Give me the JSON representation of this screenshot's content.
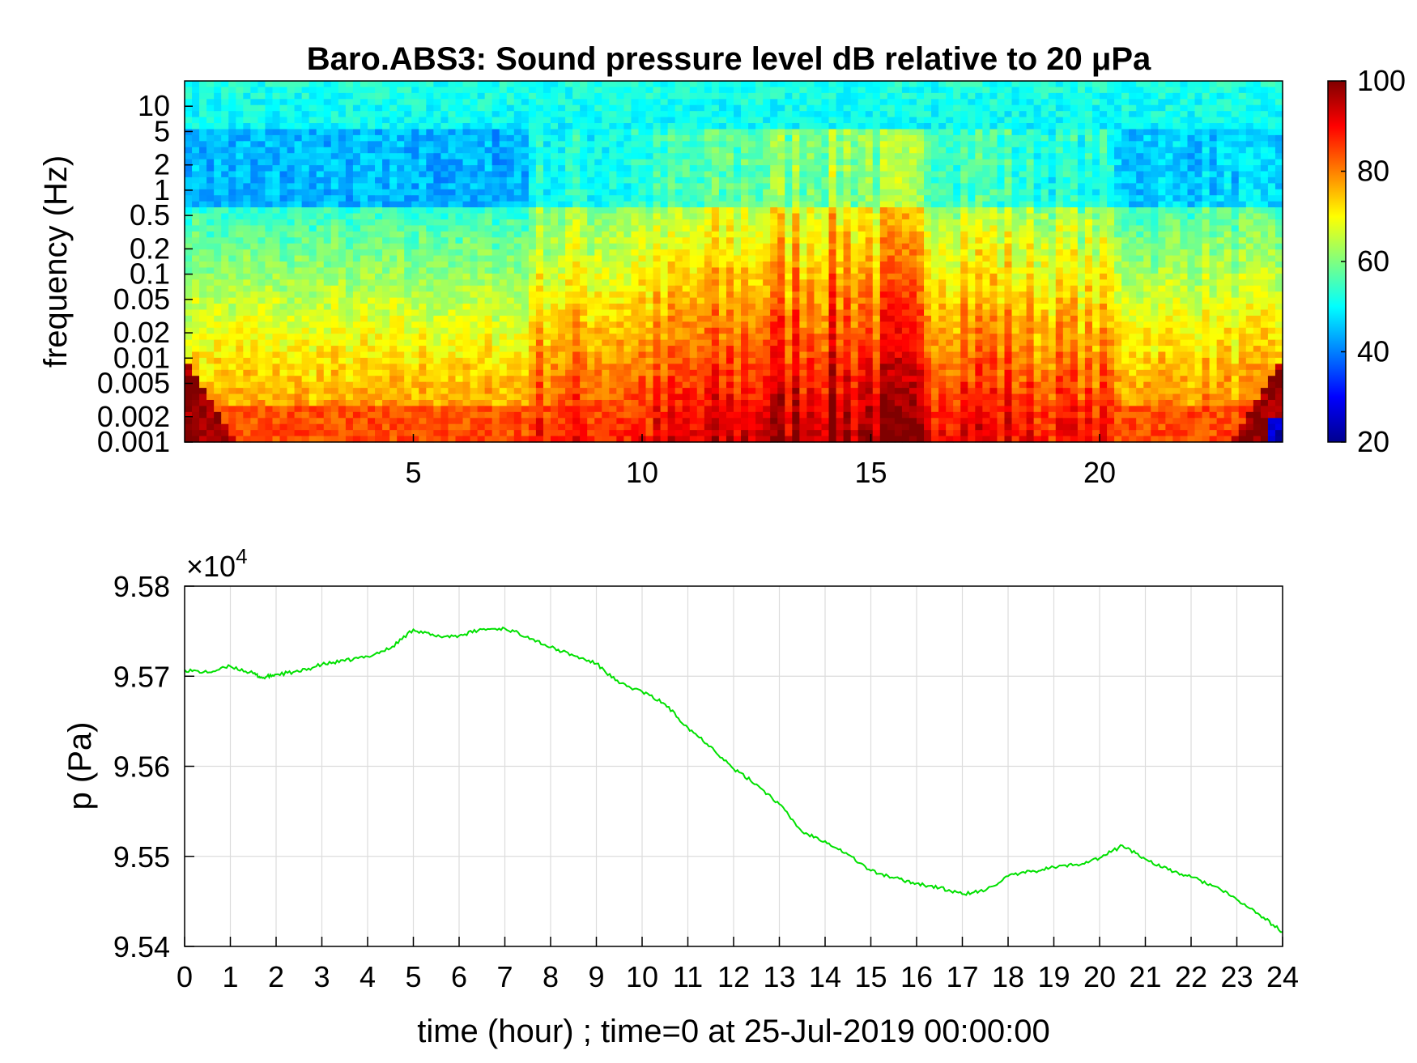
{
  "chart_data": [
    {
      "type": "heatmap",
      "title": "Baro.ABS3: Sound pressure level dB relative to 20 μPa",
      "ylabel": "frequency (Hz)",
      "xlabel": "",
      "yscale": "log",
      "ylim": [
        0.001,
        20
      ],
      "xlim": [
        0,
        24
      ],
      "x_ticks": [
        "5",
        "10",
        "15",
        "20"
      ],
      "y_ticks": [
        "0.001",
        "0.002",
        "0.005",
        "0.01",
        "0.02",
        "0.05",
        "0.1",
        "0.2",
        "0.5",
        "1",
        "2",
        "5",
        "10"
      ],
      "colormap": "jet",
      "colorbar": {
        "min": 20,
        "max": 100,
        "ticks": [
          "20",
          "40",
          "60",
          "80",
          "100"
        ]
      },
      "description_levels": {
        "high_freq_band_dB": 50,
        "mid_band_quiet_dB": 38,
        "activity_peak_hours": [
          13,
          17
        ],
        "peak_level_dB": 95
      }
    },
    {
      "type": "line",
      "ylabel": "p (Pa)",
      "xlabel": "time (hour) ; time=0 at 25-Jul-2019 00:00:00",
      "exponent_label": "×10",
      "exponent_power": "4",
      "xlim": [
        0,
        24
      ],
      "ylim": [
        9.54,
        9.58
      ],
      "grid": true,
      "x_ticks": [
        "0",
        "1",
        "2",
        "3",
        "4",
        "5",
        "6",
        "7",
        "8",
        "9",
        "10",
        "11",
        "12",
        "13",
        "14",
        "15",
        "16",
        "17",
        "18",
        "19",
        "20",
        "21",
        "22",
        "23",
        "24"
      ],
      "y_ticks": [
        "9.54",
        "9.55",
        "9.56",
        "9.57",
        "9.58"
      ],
      "line_color": "#00e000",
      "x": [
        0,
        0.5,
        1,
        1.5,
        1.7,
        2,
        2.5,
        3,
        3.5,
        4,
        4.5,
        5,
        5.5,
        6,
        6.5,
        7,
        7.5,
        8,
        8.5,
        9,
        9.5,
        10,
        10.5,
        11,
        11.5,
        12,
        12.5,
        13,
        13.5,
        14,
        14.5,
        15,
        15.5,
        16,
        16.5,
        17,
        17.5,
        18,
        18.5,
        19,
        19.5,
        20,
        20.5,
        21,
        21.5,
        22,
        22.5,
        23,
        23.5,
        24
      ],
      "y": [
        9.5707,
        9.5704,
        9.5711,
        9.5703,
        9.5698,
        9.5702,
        9.5705,
        9.5713,
        9.5717,
        9.5722,
        9.5731,
        9.5752,
        9.5744,
        9.5745,
        9.5752,
        9.5753,
        9.5744,
        9.5732,
        9.5723,
        9.5714,
        9.5692,
        9.5683,
        9.5669,
        9.5643,
        9.5622,
        9.5597,
        9.558,
        9.5558,
        9.5527,
        9.5517,
        9.5502,
        9.5484,
        9.5476,
        9.547,
        9.5465,
        9.5458,
        9.5462,
        9.5478,
        9.5483,
        9.5488,
        9.5491,
        9.5498,
        9.5512,
        9.5497,
        9.5485,
        9.5477,
        9.5467,
        9.5452,
        9.5435,
        9.5416
      ]
    }
  ]
}
